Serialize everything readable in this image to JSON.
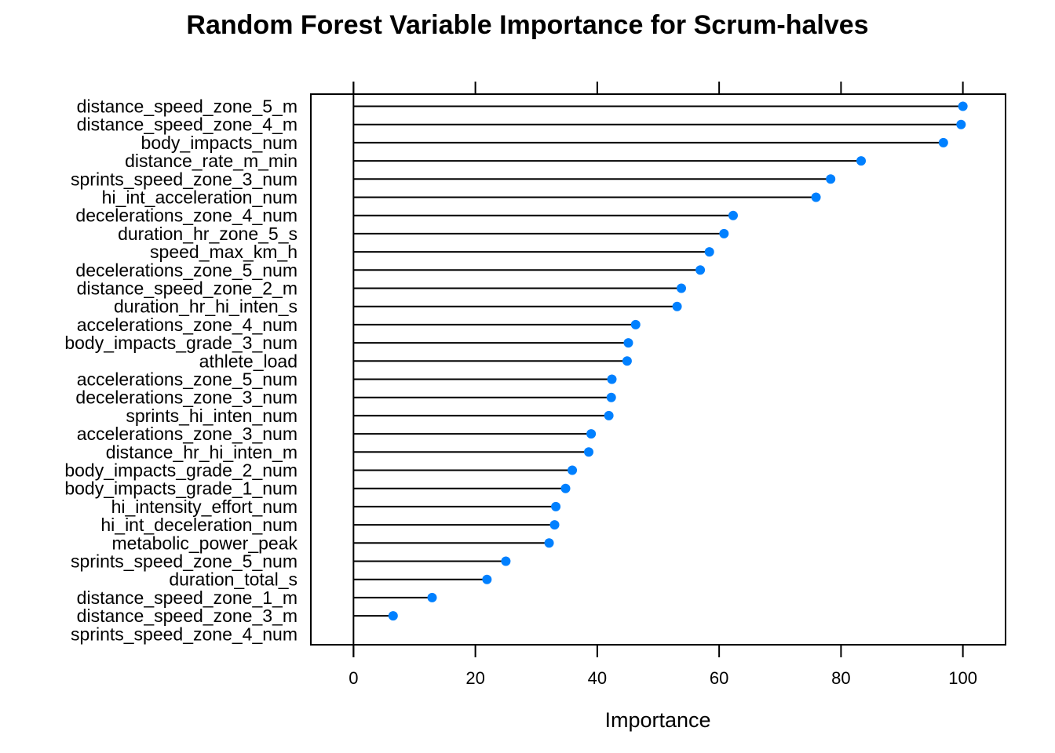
{
  "chart_data": {
    "type": "lollipop",
    "title": "Random Forest Variable Importance for Scrum-halves",
    "xlabel": "Importance",
    "ylabel": "",
    "xlim": [
      -7,
      107
    ],
    "xticks": [
      0,
      20,
      40,
      60,
      80,
      100
    ],
    "xtick_labels": [
      "0",
      "20",
      "40",
      "60",
      "80",
      "100"
    ],
    "grid": false,
    "point_color": "#0080FF",
    "categories": [
      "distance_speed_zone_5_m",
      "distance_speed_zone_4_m",
      "body_impacts_num",
      "distance_rate_m_min",
      "sprints_speed_zone_3_num",
      "hi_int_acceleration_num",
      "decelerations_zone_4_num",
      "duration_hr_zone_5_s",
      "speed_max_km_h",
      "decelerations_zone_5_num",
      "distance_speed_zone_2_m",
      "duration_hr_hi_inten_s",
      "accelerations_zone_4_num",
      "body_impacts_grade_3_num",
      "athlete_load",
      "accelerations_zone_5_num",
      "decelerations_zone_3_num",
      "sprints_hi_inten_num",
      "accelerations_zone_3_num",
      "distance_hr_hi_inten_m",
      "body_impacts_grade_2_num",
      "body_impacts_grade_1_num",
      "hi_intensity_effort_num",
      "hi_int_deceleration_num",
      "metabolic_power_peak",
      "sprints_speed_zone_5_num",
      "duration_total_s",
      "distance_speed_zone_1_m",
      "distance_speed_zone_3_m",
      "sprints_speed_zone_4_num"
    ],
    "values": [
      100,
      99.7,
      96.8,
      83.3,
      78.3,
      75.9,
      62.3,
      60.8,
      58.4,
      56.9,
      53.8,
      53.1,
      46.3,
      45.1,
      44.9,
      42.4,
      42.3,
      41.9,
      39.0,
      38.6,
      35.9,
      34.8,
      33.2,
      33.0,
      32.1,
      25.0,
      21.9,
      12.9,
      6.5,
      0
    ]
  }
}
